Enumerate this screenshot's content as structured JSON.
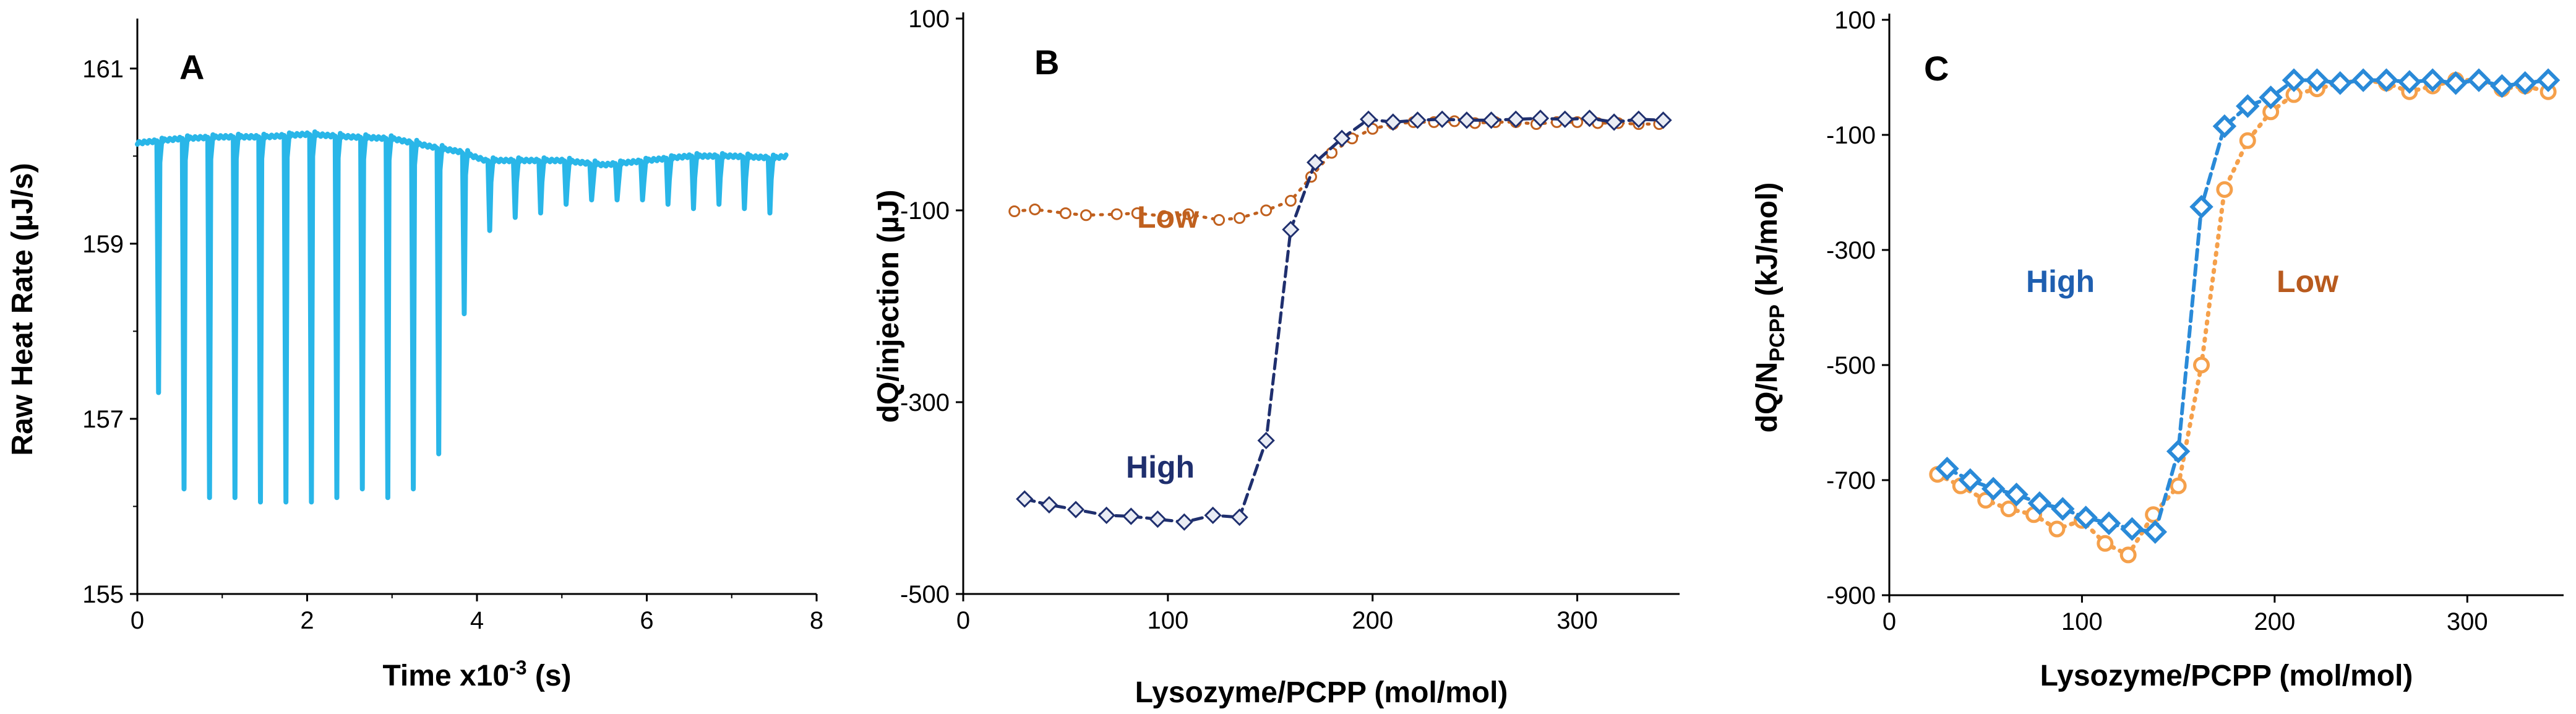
{
  "chart_data": [
    {
      "panel": "A",
      "type": "line",
      "xlabel": "Time x10",
      "xlabel_sup": "-3",
      "xlabel_unit": " (s)",
      "ylabel": "Raw Heat Rate (µJ/s)",
      "xlim": [
        0,
        8
      ],
      "ylim": [
        155,
        161.5
      ],
      "xticks": [
        0,
        2,
        4,
        6,
        8
      ],
      "yticks": [
        155,
        157,
        159,
        161
      ],
      "series": [
        {
          "name": "Raw Heat Rate",
          "color": "#29B6E8",
          "baseline": [
            [
              0.0,
              160.15
            ],
            [
              0.5,
              160.2
            ],
            [
              1.0,
              160.22
            ],
            [
              1.5,
              160.22
            ],
            [
              2.0,
              160.25
            ],
            [
              2.5,
              160.22
            ],
            [
              3.0,
              160.2
            ],
            [
              3.5,
              160.1
            ],
            [
              3.8,
              160.05
            ],
            [
              4.1,
              159.95
            ],
            [
              4.6,
              159.95
            ],
            [
              5.0,
              159.95
            ],
            [
              5.5,
              159.9
            ],
            [
              6.0,
              159.95
            ],
            [
              6.5,
              160.0
            ],
            [
              7.0,
              160.0
            ],
            [
              7.5,
              159.98
            ],
            [
              7.65,
              160.0
            ]
          ],
          "peaks": [
            {
              "t": 0.25,
              "min": 157.3
            },
            {
              "t": 0.55,
              "min": 156.2
            },
            {
              "t": 0.85,
              "min": 156.1
            },
            {
              "t": 1.15,
              "min": 156.1
            },
            {
              "t": 1.45,
              "min": 156.05
            },
            {
              "t": 1.75,
              "min": 156.05
            },
            {
              "t": 2.05,
              "min": 156.05
            },
            {
              "t": 2.35,
              "min": 156.1
            },
            {
              "t": 2.65,
              "min": 156.2
            },
            {
              "t": 2.95,
              "min": 156.1
            },
            {
              "t": 3.25,
              "min": 156.2
            },
            {
              "t": 3.55,
              "min": 156.6
            },
            {
              "t": 3.85,
              "min": 158.2
            },
            {
              "t": 4.15,
              "min": 159.15
            },
            {
              "t": 4.45,
              "min": 159.3
            },
            {
              "t": 4.75,
              "min": 159.35
            },
            {
              "t": 5.05,
              "min": 159.45
            },
            {
              "t": 5.35,
              "min": 159.5
            },
            {
              "t": 5.65,
              "min": 159.5
            },
            {
              "t": 5.95,
              "min": 159.5
            },
            {
              "t": 6.25,
              "min": 159.45
            },
            {
              "t": 6.55,
              "min": 159.4
            },
            {
              "t": 6.85,
              "min": 159.45
            },
            {
              "t": 7.15,
              "min": 159.4
            },
            {
              "t": 7.45,
              "min": 159.35
            }
          ]
        }
      ]
    },
    {
      "panel": "B",
      "type": "scatter",
      "xlabel": "Lysozyme/PCPP (mol/mol)",
      "ylabel": "dQ/injection (µJ)",
      "xlim": [
        0,
        350
      ],
      "ylim": [
        -500,
        100
      ],
      "xticks": [
        0,
        100,
        200,
        300
      ],
      "yticks": [
        100,
        -100,
        -300,
        -500
      ],
      "series": [
        {
          "name": "Low",
          "label_text": "Low",
          "color": "#C0601E",
          "marker": "circle",
          "line": "dotted",
          "x": [
            25,
            35,
            50,
            60,
            75,
            85,
            98,
            110,
            125,
            135,
            148,
            160,
            170,
            180,
            190,
            200,
            210,
            220,
            230,
            240,
            250,
            260,
            270,
            280,
            290,
            300,
            310,
            320,
            330,
            340
          ],
          "y": [
            -101,
            -99,
            -103,
            -105,
            -104,
            -103,
            -106,
            -104,
            -110,
            -108,
            -100,
            -90,
            -65,
            -40,
            -25,
            -15,
            -10,
            -8,
            -8,
            -7,
            -9,
            -8,
            -8,
            -10,
            -8,
            -8,
            -9,
            -9,
            -10,
            -10
          ]
        },
        {
          "name": "High",
          "label_text": "High",
          "color": "#1F2F6E",
          "marker": "diamond",
          "line": "dashed",
          "x": [
            30,
            42,
            55,
            70,
            82,
            95,
            108,
            122,
            135,
            148,
            160,
            172,
            185,
            198,
            210,
            222,
            234,
            246,
            258,
            270,
            282,
            294,
            306,
            318,
            330,
            342
          ],
          "y": [
            -401,
            -407,
            -412,
            -418,
            -419,
            -422,
            -425,
            -418,
            -420,
            -340,
            -120,
            -50,
            -25,
            -5,
            -8,
            -6,
            -5,
            -6,
            -6,
            -5,
            -4,
            -5,
            -4,
            -8,
            -5,
            -6
          ]
        }
      ]
    },
    {
      "panel": "C",
      "type": "scatter",
      "xlabel": "Lysozyme/PCPP (mol/mol)",
      "ylabel": "dQ/N",
      "ylabel_sub": "PCPP",
      "ylabel_unit": " (kJ/mol)",
      "xlim": [
        0,
        350
      ],
      "ylim": [
        -900,
        100
      ],
      "xticks": [
        0,
        100,
        200,
        300
      ],
      "yticks": [
        100,
        -100,
        -300,
        -500,
        -700,
        -900
      ],
      "series": [
        {
          "name": "High",
          "label_text": "High",
          "color": "#2A8AD8",
          "marker": "diamond",
          "line": "dashed",
          "x": [
            30,
            42,
            54,
            66,
            78,
            90,
            102,
            114,
            126,
            138,
            150,
            162,
            174,
            186,
            198,
            210,
            222,
            234,
            246,
            258,
            270,
            282,
            294,
            306,
            318,
            330,
            342
          ],
          "y": [
            -680,
            -700,
            -715,
            -725,
            -740,
            -750,
            -765,
            -775,
            -785,
            -790,
            -650,
            -225,
            -85,
            -50,
            -35,
            -5,
            -5,
            -10,
            -5,
            -5,
            -8,
            -5,
            -10,
            -5,
            -15,
            -10,
            -5
          ]
        },
        {
          "name": "Low",
          "label_text": "Low",
          "color": "#F5A04B",
          "marker": "circle",
          "line": "dotted",
          "x": [
            25,
            37,
            50,
            62,
            75,
            87,
            100,
            112,
            124,
            137,
            150,
            162,
            174,
            186,
            198,
            210,
            222,
            234,
            246,
            258,
            270,
            282,
            294,
            306,
            318,
            330,
            342
          ],
          "y": [
            -690,
            -710,
            -735,
            -750,
            -760,
            -785,
            -770,
            -810,
            -830,
            -760,
            -710,
            -500,
            -195,
            -110,
            -60,
            -30,
            -20,
            -10,
            -5,
            -10,
            -25,
            -15,
            -5,
            -5,
            -20,
            -15,
            -25
          ]
        }
      ]
    }
  ]
}
